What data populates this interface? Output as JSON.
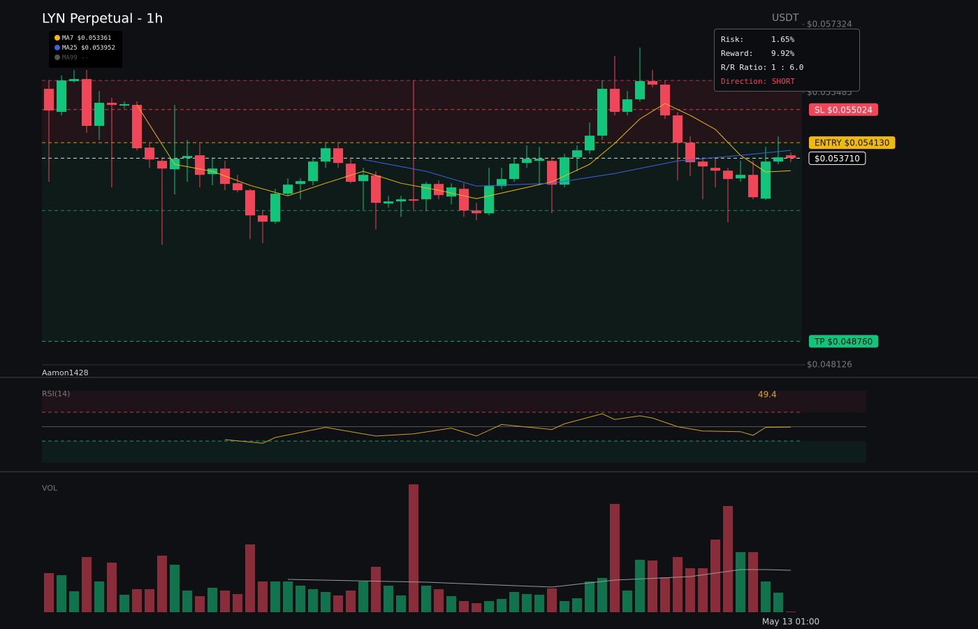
{
  "chart_data": [
    {
      "type": "candlestick",
      "title": "LYN Perpetual - 1h",
      "currency": "USDT",
      "watermark": "Aamon1428",
      "up_color": "#13c47c",
      "down_color": "#f0465a",
      "ylim": [
        0.048126,
        0.057324
      ],
      "yticks": [
        {
          "value": 0.057324,
          "label": "$0.057324"
        },
        {
          "value": 0.055485,
          "label": "$0.055485"
        },
        {
          "value": 0.048126,
          "label": "$0.048126"
        }
      ],
      "categories": [
        null,
        null,
        null,
        null,
        null,
        null,
        null,
        null,
        null,
        null,
        null,
        null,
        null,
        null,
        null,
        null,
        null,
        null,
        null,
        null,
        null,
        null,
        null,
        null,
        null,
        null,
        null,
        null,
        null,
        null,
        null,
        null,
        null,
        null,
        null,
        null,
        null,
        null,
        null,
        null,
        null,
        null,
        null,
        null,
        null,
        null,
        null,
        null,
        null,
        null,
        null,
        null,
        null,
        null,
        null,
        null,
        null,
        null,
        null,
        "May 13 01:00"
      ],
      "open": [
        0.055585,
        0.054961,
        0.055793,
        0.055849,
        0.054583,
        0.055207,
        0.055131,
        0.05515,
        0.053997,
        0.053638,
        0.053411,
        0.053714,
        0.053789,
        0.053279,
        0.05343,
        0.053033,
        0.052844,
        0.052164,
        0.051994,
        0.05275,
        0.053014,
        0.05309,
        0.053619,
        0.053978,
        0.053562,
        0.05309,
        0.053241,
        0.052485,
        0.052542,
        0.052599,
        0.052599,
        0.053014,
        0.052674,
        0.052882,
        0.052296,
        0.052221,
        0.052958,
        0.053147,
        0.053581,
        0.053638,
        0.053638,
        0.052995,
        0.053733,
        0.053922,
        0.054319,
        0.055585,
        0.054961,
        0.055301,
        0.055793,
        0.055698,
        0.054867,
        0.054129,
        0.053619,
        0.053449,
        0.053373,
        0.053166,
        0.05326,
        0.052617,
        0.053619,
        0.053789
      ],
      "high": [
        0.055811,
        0.055944,
        0.056095,
        0.056095,
        0.055528,
        0.055339,
        0.055245,
        0.055245,
        0.054111,
        0.053733,
        0.05515,
        0.054205,
        0.054111,
        0.053733,
        0.053638,
        0.05326,
        0.052882,
        0.052315,
        0.052882,
        0.053166,
        0.053166,
        0.053733,
        0.054111,
        0.054111,
        0.053733,
        0.053449,
        0.053355,
        0.052693,
        0.052693,
        0.055811,
        0.053071,
        0.053109,
        0.053033,
        0.053033,
        0.052504,
        0.053449,
        0.053449,
        0.053733,
        0.054054,
        0.054016,
        0.053733,
        0.053827,
        0.054054,
        0.054677,
        0.055811,
        0.056473,
        0.055528,
        0.0567,
        0.056095,
        0.055811,
        0.054961,
        0.0543,
        0.053733,
        0.053733,
        0.053449,
        0.053638,
        0.053638,
        0.054016,
        0.0543,
        0.053865
      ],
      "low": [
        0.053071,
        0.054867,
        0.055755,
        0.054394,
        0.054205,
        0.05292,
        0.055056,
        0.053922,
        0.053449,
        0.05137,
        0.052731,
        0.053071,
        0.05292,
        0.052977,
        0.052844,
        0.052788,
        0.051521,
        0.051408,
        0.051937,
        0.052693,
        0.052599,
        0.052977,
        0.053449,
        0.053449,
        0.053033,
        0.052315,
        0.051786,
        0.052372,
        0.052126,
        0.052315,
        0.052277,
        0.052599,
        0.052466,
        0.052126,
        0.052032,
        0.052164,
        0.052882,
        0.053071,
        0.053449,
        0.052977,
        0.052221,
        0.05292,
        0.053355,
        0.053827,
        0.054205,
        0.054867,
        0.054867,
        0.055245,
        0.055623,
        0.054772,
        0.053109,
        0.053222,
        0.052599,
        0.05292,
        0.051975,
        0.053071,
        0.052599,
        0.05258,
        0.053543,
        0.0536
      ],
      "close": [
        0.054999,
        0.055811,
        0.055849,
        0.054583,
        0.055207,
        0.05515,
        0.055169,
        0.053978,
        0.053676,
        0.05343,
        0.053695,
        0.05377,
        0.05326,
        0.05343,
        0.053014,
        0.052844,
        0.052164,
        0.051994,
        0.05275,
        0.052995,
        0.05309,
        0.053619,
        0.053978,
        0.053581,
        0.053071,
        0.05326,
        0.052504,
        0.052542,
        0.052599,
        0.052561,
        0.053014,
        0.052712,
        0.05292,
        0.052296,
        0.052221,
        0.052958,
        0.053147,
        0.053562,
        0.053695,
        0.053695,
        0.052995,
        0.053733,
        0.053922,
        0.054319,
        0.055585,
        0.054961,
        0.055301,
        0.055793,
        0.055698,
        0.054867,
        0.05413,
        0.0536,
        0.053487,
        0.053373,
        0.053147,
        0.05326,
        0.052655,
        0.053619,
        0.053733,
        0.053714
      ],
      "series": [
        {
          "name": "MA7 $0.053361",
          "color": "#f0b90b",
          "x": [
            7,
            10,
            13,
            16,
            19,
            22,
            25,
            28,
            31,
            34,
            37,
            40,
            43,
            45,
            47,
            49,
            51,
            53,
            55,
            57,
            59
          ],
          "values": [
            0.05515,
            0.053544,
            0.053355,
            0.052977,
            0.052693,
            0.053033,
            0.053355,
            0.053033,
            0.052844,
            0.052617,
            0.052844,
            0.053071,
            0.053544,
            0.054111,
            0.054772,
            0.055188,
            0.054867,
            0.054489,
            0.053789,
            0.053336,
            0.053373
          ]
        },
        {
          "name": "MA25 $0.053952",
          "color": "#3b63e0",
          "x": [
            25,
            30,
            34,
            40,
            45,
            50,
            55,
            59
          ],
          "values": [
            0.053676,
            0.053355,
            0.052958,
            0.053033,
            0.053298,
            0.053638,
            0.053789,
            0.053922
          ]
        },
        {
          "name": "MA99 --",
          "color": "#555555",
          "x": [],
          "values": []
        }
      ],
      "levels": [
        {
          "value": 0.055024,
          "label": "SL $0.055024",
          "color": "#f0465a",
          "text_color": "#ffffff"
        },
        {
          "value": 0.05413,
          "label": "ENTRY $0.054130",
          "color": "#f0b90b",
          "text_color": "#111111"
        },
        {
          "value": 0.05371,
          "label": "$0.053710",
          "color": "#ffffff",
          "text_color": "#ffffff"
        },
        {
          "value": 0.04876,
          "label": "TP $0.048760",
          "color": "#13c47c",
          "text_color": "#111111"
        }
      ],
      "extra_levels": [
        {
          "value": 0.055811,
          "color": "#f0465a"
        },
        {
          "value": 0.052296,
          "color": "#13c47c"
        }
      ],
      "trade_box": {
        "rows": [
          [
            "Risk:",
            "1.65%"
          ],
          [
            "Reward:",
            "9.92%"
          ],
          [
            "R/R Ratio:",
            "1 : 6.0"
          ]
        ],
        "direction": "Direction: SHORT"
      }
    },
    {
      "type": "line",
      "title": "RSI(14)",
      "color": "#c9a227",
      "ylim": [
        0,
        100
      ],
      "guides": [
        70,
        50,
        30
      ],
      "x": [
        14,
        17,
        18,
        22,
        26,
        29,
        32,
        34,
        36,
        40,
        41,
        44,
        45,
        47,
        48,
        50,
        52,
        55,
        56,
        57,
        59
      ],
      "values": [
        32,
        27,
        35,
        49,
        37,
        40,
        48,
        37,
        53,
        46,
        54,
        68,
        60,
        65,
        62,
        50,
        44,
        43,
        38,
        49,
        49.4
      ]
    },
    {
      "type": "bar",
      "title": "VOL",
      "ylim": [
        0,
        190
      ],
      "values": [
        56,
        53,
        30,
        79,
        44,
        71,
        25,
        33,
        33,
        81,
        68,
        31,
        23,
        35,
        31,
        26,
        97,
        44,
        44,
        44,
        38,
        33,
        29,
        24,
        31,
        44,
        65,
        38,
        24,
        183,
        38,
        33,
        23,
        16,
        13,
        16,
        19,
        29,
        26,
        25,
        34,
        16,
        20,
        44,
        49,
        155,
        31,
        75,
        74,
        50,
        79,
        63,
        63,
        104,
        152,
        86,
        86,
        44,
        28,
        1
      ],
      "series": [
        {
          "color": "#9a9a9a",
          "x": [
            19,
            30,
            40,
            45,
            51,
            55,
            57,
            59
          ],
          "values": [
            47,
            43,
            36,
            46,
            51,
            61,
            61,
            60
          ]
        }
      ]
    }
  ]
}
